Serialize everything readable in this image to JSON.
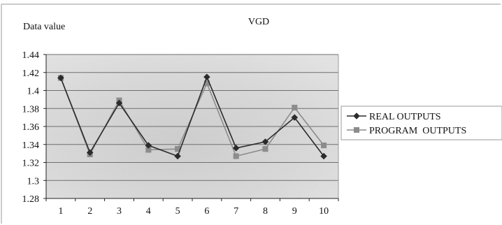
{
  "chart_data": {
    "type": "line",
    "title": "VGD",
    "ylabel": "Data value",
    "xlabel": "",
    "categories": [
      "1",
      "2",
      "3",
      "4",
      "5",
      "6",
      "7",
      "8",
      "9",
      "10"
    ],
    "y_ticks": [
      "1.28",
      "1.3",
      "1.32",
      "1.34",
      "1.36",
      "1.38",
      "1.4",
      "1.42",
      "1.44"
    ],
    "ylim": [
      1.28,
      1.44
    ],
    "grid": true,
    "legend_position": "right",
    "series": [
      {
        "name": "REAL OUTPUTS",
        "marker": "diamond",
        "color": "#2b2b2b",
        "values": [
          1.414,
          1.331,
          1.386,
          1.339,
          1.327,
          1.415,
          1.336,
          1.343,
          1.37,
          1.327
        ]
      },
      {
        "name": "PROGRAM  OUTPUTS",
        "marker": "square",
        "color": "#8c8c8c",
        "values": [
          1.414,
          1.329,
          1.389,
          1.334,
          1.335,
          1.408,
          1.327,
          1.335,
          1.381,
          1.339
        ]
      }
    ]
  }
}
